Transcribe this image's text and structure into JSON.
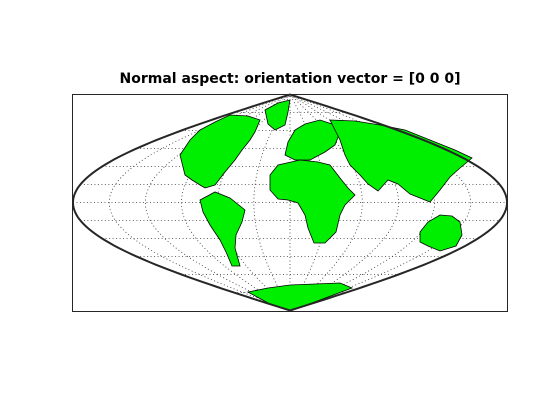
{
  "title": "Normal aspect: orientation vector = [0 0 0]"
}
